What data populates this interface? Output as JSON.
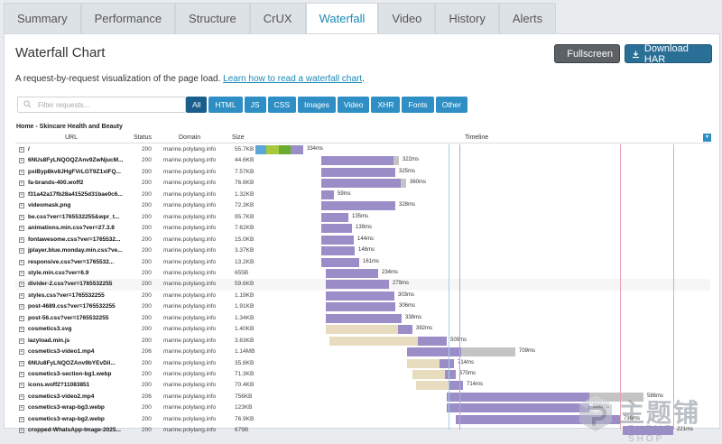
{
  "tabs": [
    "Summary",
    "Performance",
    "Structure",
    "CrUX",
    "Waterfall",
    "Video",
    "History",
    "Alerts"
  ],
  "active_tab": 4,
  "title": "Waterfall Chart",
  "fullscreen_label": "Fullscreen",
  "download_label": "Download HAR",
  "description": "A request-by-request visualization of the page load.",
  "learn_link": "Learn how to read a waterfall chart",
  "learn_suffix": ".",
  "filter_placeholder": "Filter requests...",
  "filter_tabs": [
    "All",
    "HTML",
    "JS",
    "CSS",
    "Images",
    "Video",
    "XHR",
    "Fonts",
    "Other"
  ],
  "page_label": "Home - Skincare Health and Beauty",
  "columns": {
    "url": "URL",
    "status": "Status",
    "domain": "Domain",
    "size": "Size",
    "timeline": "Timeline"
  },
  "watermark": {
    "text": "主题铺",
    "sub": "THEME SHOP"
  },
  "colors": {
    "accent": "#2f8fc5",
    "selected": "#1b5e8c",
    "purple": "#9b8dc8",
    "tan": "#e8dcbf",
    "gray": "#c4c4c4"
  },
  "requests": [
    {
      "url": "/",
      "status": "200",
      "domain": "marine.polylang.info",
      "size": "55.7KB",
      "time": "334ms",
      "start": 0,
      "wait": 0,
      "dl": 53,
      "type": "html"
    },
    {
      "url": "6NUs8FyLNQOQZAnv9ZwNjucM...",
      "status": "200",
      "domain": "marine.polylang.info",
      "size": "44.6KB",
      "time": "322ms",
      "start": 73,
      "wait": 0,
      "dl": 80,
      "type": "img"
    },
    {
      "url": "pxiByp8kv8JHgFVrLGT9Z1xlFQ...",
      "status": "200",
      "domain": "marine.polylang.info",
      "size": "7.57KB",
      "time": "325ms",
      "start": 73,
      "wait": 0,
      "dl": 82,
      "type": "font"
    },
    {
      "url": "fa-brands-400.woff2",
      "status": "200",
      "domain": "marine.polylang.info",
      "size": "76.6KB",
      "time": "360ms",
      "start": 73,
      "wait": 0,
      "dl": 88,
      "type": "font"
    },
    {
      "url": "f31a42a17fb28a41525d31bae0c6...",
      "status": "200",
      "domain": "marine.polylang.info",
      "size": "1.32KB",
      "time": "59ms",
      "start": 73,
      "wait": 0,
      "dl": 14,
      "type": "img"
    },
    {
      "url": "videomask.png",
      "status": "200",
      "domain": "marine.polylang.info",
      "size": "72.3KB",
      "time": "328ms",
      "start": 73,
      "wait": 0,
      "dl": 82,
      "type": "img"
    },
    {
      "url": "be.css?ver=1765532255&wpr_t...",
      "status": "200",
      "domain": "marine.polylang.info",
      "size": "95.7KB",
      "time": "135ms",
      "start": 73,
      "wait": 0,
      "dl": 30,
      "type": "css"
    },
    {
      "url": "animations.min.css?ver=27.3.8",
      "status": "200",
      "domain": "marine.polylang.info",
      "size": "7.62KB",
      "time": "139ms",
      "start": 73,
      "wait": 0,
      "dl": 34,
      "type": "css"
    },
    {
      "url": "fontawesome.css?ver=1765532...",
      "status": "200",
      "domain": "marine.polylang.info",
      "size": "15.0KB",
      "time": "144ms",
      "start": 73,
      "wait": 0,
      "dl": 36,
      "type": "css"
    },
    {
      "url": "jplayer.blue.monday.min.css?ve...",
      "status": "200",
      "domain": "marine.polylang.info",
      "size": "3.37KB",
      "time": "146ms",
      "start": 73,
      "wait": 0,
      "dl": 37,
      "type": "css"
    },
    {
      "url": "responsive.css?ver=1765532...",
      "status": "200",
      "domain": "marine.polylang.info",
      "size": "13.2KB",
      "time": "161ms",
      "start": 73,
      "wait": 0,
      "dl": 42,
      "type": "css"
    },
    {
      "url": "style.min.css?ver=6.9",
      "status": "200",
      "domain": "marine.polylang.info",
      "size": "655B",
      "time": "234ms",
      "start": 78,
      "wait": 0,
      "dl": 58,
      "type": "css"
    },
    {
      "url": "divider-2.css?ver=1765532255",
      "status": "200",
      "domain": "marine.polylang.info",
      "size": "59.6KB",
      "time": "279ms",
      "start": 78,
      "wait": 0,
      "dl": 70,
      "type": "css"
    },
    {
      "url": "styles.css?ver=1765532255",
      "status": "200",
      "domain": "marine.polylang.info",
      "size": "1.19KB",
      "time": "303ms",
      "start": 78,
      "wait": 0,
      "dl": 76,
      "type": "css"
    },
    {
      "url": "post-4689.css?ver=1765532255",
      "status": "200",
      "domain": "marine.polylang.info",
      "size": "1.91KB",
      "time": "306ms",
      "start": 78,
      "wait": 0,
      "dl": 77,
      "type": "css"
    },
    {
      "url": "post-56.css?ver=1765532255",
      "status": "200",
      "domain": "marine.polylang.info",
      "size": "1.34KB",
      "time": "338ms",
      "start": 78,
      "wait": 0,
      "dl": 84,
      "type": "css"
    },
    {
      "url": "cosmetics3.svg",
      "status": "200",
      "domain": "marine.polylang.info",
      "size": "1.40KB",
      "time": "392ms",
      "start": 78,
      "wait": 80,
      "dl": 16,
      "type": "img"
    },
    {
      "url": "lazyload.min.js",
      "status": "200",
      "domain": "marine.polylang.info",
      "size": "3.63KB",
      "time": "509ms",
      "start": 82,
      "wait": 98,
      "dl": 32,
      "type": "js"
    },
    {
      "url": "cosmetics3-video1.mp4",
      "status": "206",
      "domain": "marine.polylang.info",
      "size": "1.14MB",
      "time": "709ms",
      "start": 168,
      "wait": 0,
      "dl": 60,
      "type": "video"
    },
    {
      "url": "6NUu8FyLNQOZAnv9bYEvDil...",
      "status": "200",
      "domain": "marine.polylang.info",
      "size": "35.8KB",
      "time": "714ms",
      "start": 168,
      "wait": 36,
      "dl": 16,
      "type": "font"
    },
    {
      "url": "cosmetics3-section-bg1.webp",
      "status": "200",
      "domain": "marine.polylang.info",
      "size": "71.3KB",
      "time": "670ms",
      "start": 174,
      "wait": 36,
      "dl": 12,
      "type": "img"
    },
    {
      "url": "icons.woff2?11083851",
      "status": "200",
      "domain": "marine.polylang.info",
      "size": "70.4KB",
      "time": "714ms",
      "start": 178,
      "wait": 36,
      "dl": 16,
      "type": "font"
    },
    {
      "url": "cosmetics3-video2.mp4",
      "status": "206",
      "domain": "marine.polylang.info",
      "size": "756KB",
      "time": "586ms",
      "start": 212,
      "wait": 0,
      "dl": 158,
      "type": "video"
    },
    {
      "url": "cosmetics3-wrap-bg3.webp",
      "status": "200",
      "domain": "marine.polylang.info",
      "size": "123KB",
      "time": "586ms",
      "start": 212,
      "wait": 0,
      "dl": 158,
      "type": "img"
    },
    {
      "url": "cosmetics3-wrap-bg2.webp",
      "status": "200",
      "domain": "marine.polylang.info",
      "size": "76.9KB",
      "time": "736ms",
      "start": 222,
      "wait": 0,
      "dl": 182,
      "type": "img"
    },
    {
      "url": "cropped-WhatsApp-Image-2025...",
      "status": "200",
      "domain": "marine.polylang.info",
      "size": "679B",
      "time": "221ms",
      "start": 407,
      "wait": 0,
      "dl": 56,
      "type": "img"
    }
  ]
}
